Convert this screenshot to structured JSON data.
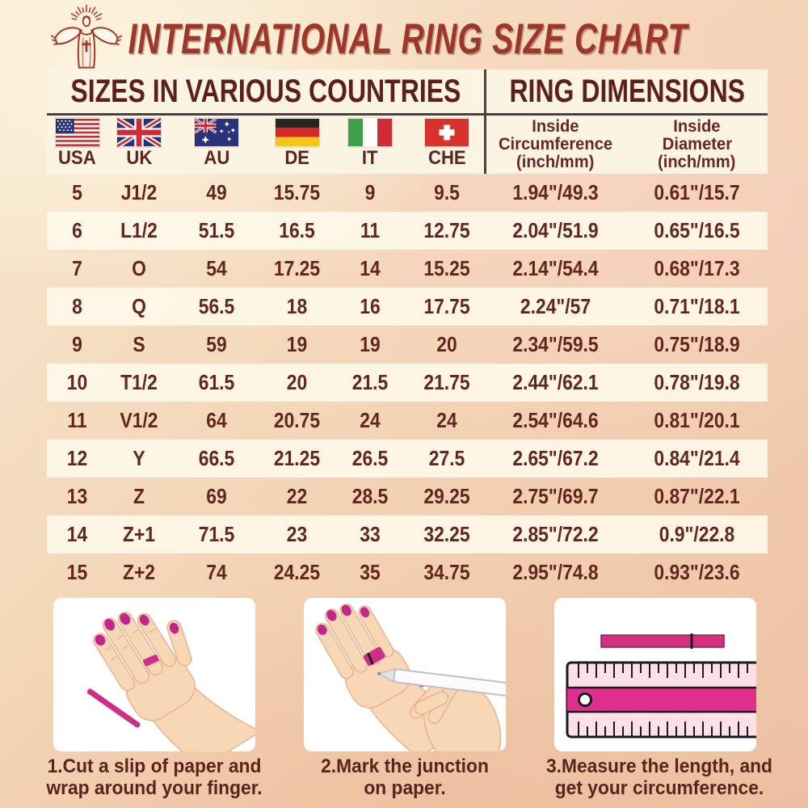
{
  "chart_data": {
    "type": "table",
    "title": "INTERNATIONAL RING SIZE CHART",
    "section_headers": {
      "left": "SIZES IN VARIOUS COUNTRIES",
      "right": "RING DIMENSIONS"
    },
    "country_columns": [
      "USA",
      "UK",
      "AU",
      "DE",
      "IT",
      "CHE"
    ],
    "dimension_columns": [
      {
        "lines": [
          "Inside",
          "Circumference",
          "(inch/mm)"
        ]
      },
      {
        "lines": [
          "Inside",
          "Diameter",
          "(inch/mm)"
        ]
      }
    ],
    "rows": [
      [
        "5",
        "J1/2",
        "49",
        "15.75",
        "9",
        "9.5",
        "1.94\"/49.3",
        "0.61\"/15.7"
      ],
      [
        "6",
        "L1/2",
        "51.5",
        "16.5",
        "11",
        "12.75",
        "2.04\"/51.9",
        "0.65\"/16.5"
      ],
      [
        "7",
        "O",
        "54",
        "17.25",
        "14",
        "15.25",
        "2.14\"/54.4",
        "0.68\"/17.3"
      ],
      [
        "8",
        "Q",
        "56.5",
        "18",
        "16",
        "17.75",
        "2.24\"/57",
        "0.71\"/18.1"
      ],
      [
        "9",
        "S",
        "59",
        "19",
        "19",
        "20",
        "2.34\"/59.5",
        "0.75\"/18.9"
      ],
      [
        "10",
        "T1/2",
        "61.5",
        "20",
        "21.5",
        "21.75",
        "2.44\"/62.1",
        "0.78\"/19.8"
      ],
      [
        "11",
        "V1/2",
        "64",
        "20.75",
        "24",
        "24",
        "2.54\"/64.6",
        "0.81\"/20.1"
      ],
      [
        "12",
        "Y",
        "66.5",
        "21.25",
        "26.5",
        "27.5",
        "2.65\"/67.2",
        "0.84\"/21.4"
      ],
      [
        "13",
        "Z",
        "69",
        "22",
        "28.5",
        "29.25",
        "2.75\"/69.7",
        "0.87\"/22.1"
      ],
      [
        "14",
        "Z+1",
        "71.5",
        "23",
        "33",
        "32.25",
        "2.85\"/72.2",
        "0.9\"/22.8"
      ],
      [
        "15",
        "Z+2",
        "74",
        "24.25",
        "35",
        "34.75",
        "2.95\"/74.8",
        "0.93\"/23.6"
      ]
    ]
  },
  "icons": {
    "logo": "jesus-with-open-arms-emblem",
    "flags": [
      "usa-flag",
      "uk-flag",
      "australia-flag",
      "germany-flag",
      "italy-flag",
      "switzerland-flag"
    ],
    "illustrations": [
      "hand-with-paper-strip",
      "mark-junction-with-pen",
      "pink-ruler"
    ]
  },
  "instructions": [
    {
      "lines": [
        "1.Cut a slip of paper and",
        "wrap around your finger."
      ]
    },
    {
      "lines": [
        "2.Mark the junction",
        "on paper."
      ]
    },
    {
      "lines": [
        "3.Measure the length, and",
        "get your circumference."
      ]
    }
  ],
  "colors": {
    "title_red": "#9d372a",
    "heading_maroon": "#5c1f1d",
    "text_maroon": "#63261f",
    "panel_cream": "#fcf4e3",
    "row_band": "#fdf8ec",
    "divider_dark": "#4a423e",
    "accent_magenta": "#d62f87"
  }
}
